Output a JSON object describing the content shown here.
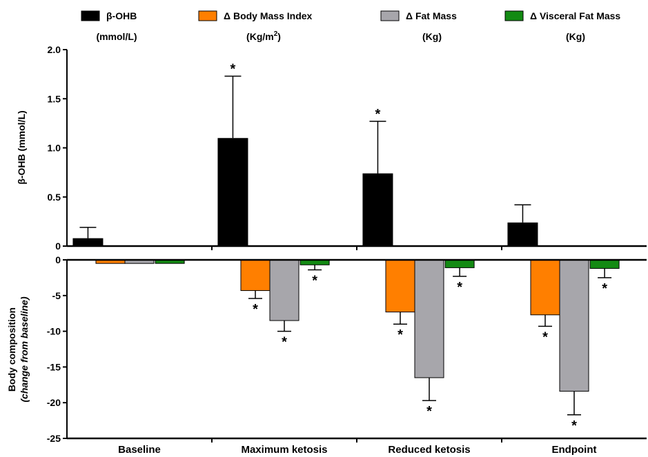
{
  "chart_data": {
    "type": "bar",
    "categories": [
      "Baseline",
      "Maximum ketosis",
      "Reduced ketosis",
      "Endpoint"
    ],
    "legend": [
      {
        "key": "bohb",
        "line1": "β-OHB",
        "line2": "(mmol/L)",
        "color": "#000000"
      },
      {
        "key": "bmi",
        "line1": "Δ Body Mass Index",
        "line2": "(Kg/m",
        "line2_sup": "2",
        "line2_end": ")",
        "color": "#ff7f00"
      },
      {
        "key": "fat",
        "line1": "Δ Fat Mass",
        "line2": "(Kg)",
        "color": "#a7a6ab"
      },
      {
        "key": "vfat",
        "line1": "Δ Visceral Fat Mass",
        "line2": "(Kg)",
        "color": "#138a13"
      }
    ],
    "top_panel": {
      "ylabel": "β-OHB (mmol/L)",
      "ylim": [
        0,
        2.0
      ],
      "ticks": [
        "0",
        "0.5",
        "1.0",
        "1.5",
        "2.0"
      ],
      "series": [
        {
          "name": "β-OHB",
          "color": "#000000",
          "values": [
            0.08,
            1.1,
            0.74,
            0.24
          ],
          "errors": [
            0.11,
            0.63,
            0.53,
            0.18
          ],
          "significant": [
            false,
            true,
            true,
            false
          ]
        }
      ]
    },
    "bottom_panel": {
      "ylabel_line1": "Body composition",
      "ylabel_line2": "(change from baseline)",
      "ylim": [
        -25,
        0
      ],
      "ticks": [
        "0",
        "-5",
        "-10",
        "-15",
        "-20",
        "-25"
      ],
      "series": [
        {
          "name": "Δ Body Mass Index",
          "color": "#ff7f00",
          "values": [
            -0.5,
            -4.3,
            -7.3,
            -7.7
          ],
          "errors": [
            0,
            1.1,
            1.7,
            1.6
          ],
          "significant": [
            false,
            true,
            true,
            true
          ]
        },
        {
          "name": "Δ Fat Mass",
          "color": "#a7a6ab",
          "values": [
            -0.5,
            -8.5,
            -16.5,
            -18.4
          ],
          "errors": [
            0,
            1.5,
            3.2,
            3.3
          ],
          "significant": [
            false,
            true,
            true,
            true
          ]
        },
        {
          "name": "Δ Visceral Fat Mass",
          "color": "#138a13",
          "values": [
            -0.5,
            -0.7,
            -1.1,
            -1.2
          ],
          "errors": [
            0,
            0.7,
            1.2,
            1.3
          ],
          "significant": [
            false,
            true,
            true,
            true
          ]
        }
      ]
    },
    "significance_marker": "*"
  }
}
